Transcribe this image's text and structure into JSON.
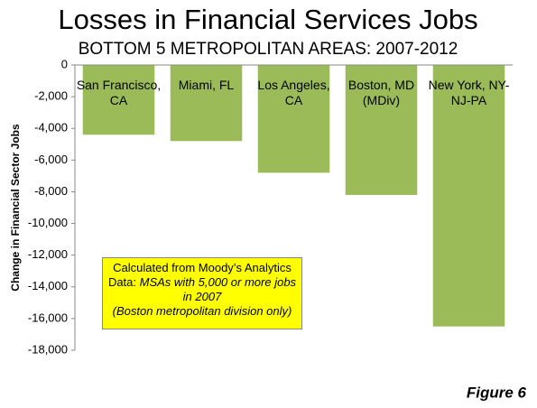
{
  "chart_data": {
    "type": "bar",
    "title": "Losses in Financial Services Jobs",
    "subtitle": "BOTTOM 5 METROPOLITAN AREAS: 2007-2012",
    "y_label": "Change in Financial Sector Jobs",
    "categories": [
      "San Francisco, CA",
      "Miami, FL",
      "Los Angeles, CA",
      "Boston, MD (MDiv)",
      "New York, NY-NJ-PA"
    ],
    "values": [
      -4400,
      -4800,
      -6800,
      -8200,
      -16500
    ],
    "color": "#9bbb59",
    "ylim": [
      -18000,
      0
    ],
    "yticks": [
      0,
      {
        "value": -2000,
        "label": "-2,000"
      },
      {
        "value": -4000,
        "label": "-4,000"
      },
      {
        "value": -6000,
        "label": "-6,000"
      },
      {
        "value": -8000,
        "label": "-8,000"
      },
      {
        "value": -10000,
        "label": "-10,000"
      },
      {
        "value": -12000,
        "label": "-12,000"
      },
      {
        "value": -14000,
        "label": "-14,000"
      },
      {
        "value": -16000,
        "label": "-16,000"
      },
      {
        "value": -18000,
        "label": "-18,000"
      }
    ],
    "grid": false,
    "annotation": [
      "Calculated from Moody’s Analytics Data:",
      "MSAs with 5,000 or more jobs in 2007",
      "(Boston metropolitan division only)"
    ],
    "figure_label": "Figure 6"
  }
}
